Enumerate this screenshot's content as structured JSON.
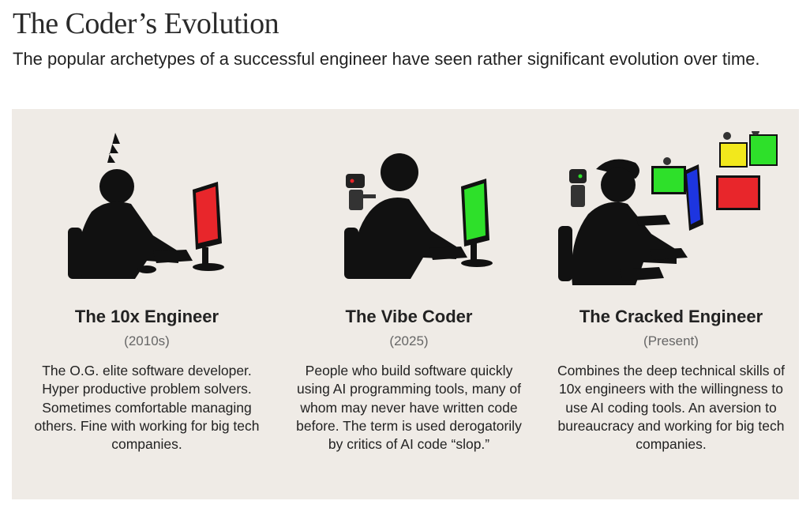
{
  "header": {
    "title": "The Coder’s Evolution",
    "subtitle": "The popular archetypes of a successful engineer have seen rather significant evolution over time."
  },
  "colors": {
    "panel_bg": "#efebe6",
    "screen_red": "#e8262b",
    "screen_green": "#2ee02a",
    "screen_blue": "#1d35e0",
    "screen_yellow": "#f2e81c"
  },
  "archetypes": [
    {
      "name": "The 10x Engineer",
      "era": "(2010s)",
      "description": "The O.G. elite software developer. Hyper productive problem solvers. Sometimes comfortable managing others. Fine with working for big tech companies.",
      "illustration": "silhouette-at-red-monitor"
    },
    {
      "name": "The Vibe Coder",
      "era": "(2025)",
      "description": "People who build software quickly using AI programming tools, many of whom may never have written code before. The term is used derogatorily by critics of AI code “slop.”",
      "illustration": "silhouette-with-robot-at-green-monitor"
    },
    {
      "name": "The Cracked Engineer",
      "era": "(Present)",
      "description": "Combines the deep technical skills of 10x engineers with the willingness to use AI coding tools. An aversion to bureaucracy and working for big tech companies.",
      "illustration": "silhouette-with-robots-at-many-monitors"
    }
  ]
}
